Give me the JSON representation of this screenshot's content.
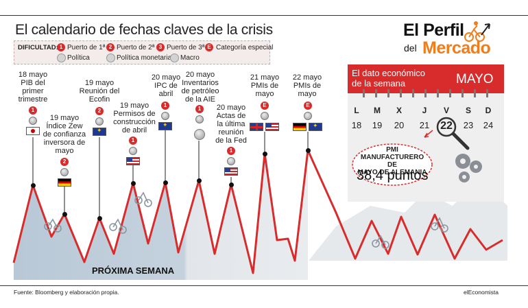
{
  "title": "El calendario de fechas claves de la crisis",
  "logo": {
    "line1": "El Perfil",
    "line2": "del",
    "line3": "Mercado"
  },
  "legend": {
    "label": "DIFICULTAD:",
    "items": [
      {
        "badge": "1",
        "label": "Puerto de 1ª"
      },
      {
        "badge": "2",
        "label": "Puerto de 2ª"
      },
      {
        "badge": "3",
        "label": "Puerto de 3ª"
      },
      {
        "badge": "E",
        "label": "Categoría especial"
      },
      {
        "label": "Política"
      },
      {
        "label": "Política monetaria"
      },
      {
        "label": "Macro"
      }
    ]
  },
  "events": [
    {
      "text": "18 mayo\nPIB del\nprimer\ntrimestre",
      "badge": "1",
      "flag": "jp"
    },
    {
      "text": "19 mayo\nÍndice Zew\nde confianza\ninversora de\nmayo",
      "badge": "2",
      "flag": "de"
    },
    {
      "text": "19 mayo\nReunión del\nEcofin",
      "badge": "2",
      "flag": "eu"
    },
    {
      "text": "19 mayo\nPermisos de\nconstrucción\nde abril",
      "badge": "1",
      "flag": "us"
    },
    {
      "text": "20 mayo\nIPC de\nabril",
      "badge": "1",
      "flag": "eu"
    },
    {
      "text": "20 mayo\nInventarios\nde petróleo\nde la AIE",
      "badge": "1",
      "flag": "globe"
    },
    {
      "text": "20 mayo\nActas de\nla última\nreunión\nde la Fed",
      "badge": "1",
      "flag": "us"
    },
    {
      "text": "21 mayo\nPMIs de\nmayo",
      "badge": "E",
      "flag": "uk-us"
    },
    {
      "text": "22 mayo\nPMIs de\nmayo",
      "badge": "E",
      "flag": "de-eu"
    }
  ],
  "panel": {
    "title": "El dato económico\nde la semana",
    "month": "MAYO",
    "days": [
      "L",
      "M",
      "X",
      "J",
      "V",
      "S",
      "D"
    ],
    "dates": [
      "18",
      "19",
      "20",
      "21",
      "22",
      "23",
      "24"
    ],
    "highlight": "22",
    "indicator": "PMI\nMANUFACTURERO DE\nMAYO DE ALEMANIA",
    "value": "38,4 puntos"
  },
  "proxima": "PRÓXIMA SEMANA",
  "source": "Fuente: Bloomberg y elaboración propia.",
  "publisher": "elEconomista",
  "colors": {
    "accent": "#d82c2c",
    "logo_orange": "#f07d1a",
    "mountain": "#b9c8d6"
  }
}
